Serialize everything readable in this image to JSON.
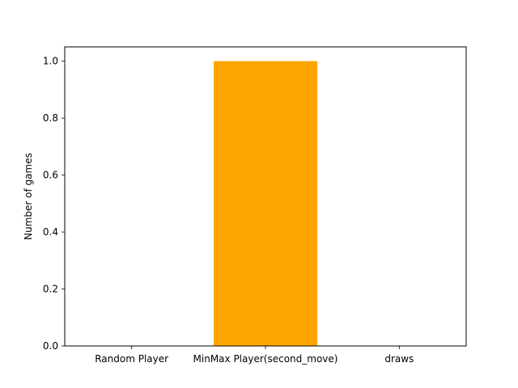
{
  "chart_data": {
    "type": "bar",
    "title": "",
    "xlabel": "",
    "ylabel": "Number of games",
    "categories": [
      "Random Player",
      "MinMax Player(second_move)",
      "draws"
    ],
    "values": [
      0,
      1,
      0
    ],
    "bar_color": "#FFA500",
    "ylim": [
      0,
      1.05
    ],
    "yticks": [
      "0.0",
      "0.2",
      "0.4",
      "0.6",
      "0.8",
      "1.0"
    ],
    "grid": false,
    "legend": "none"
  }
}
